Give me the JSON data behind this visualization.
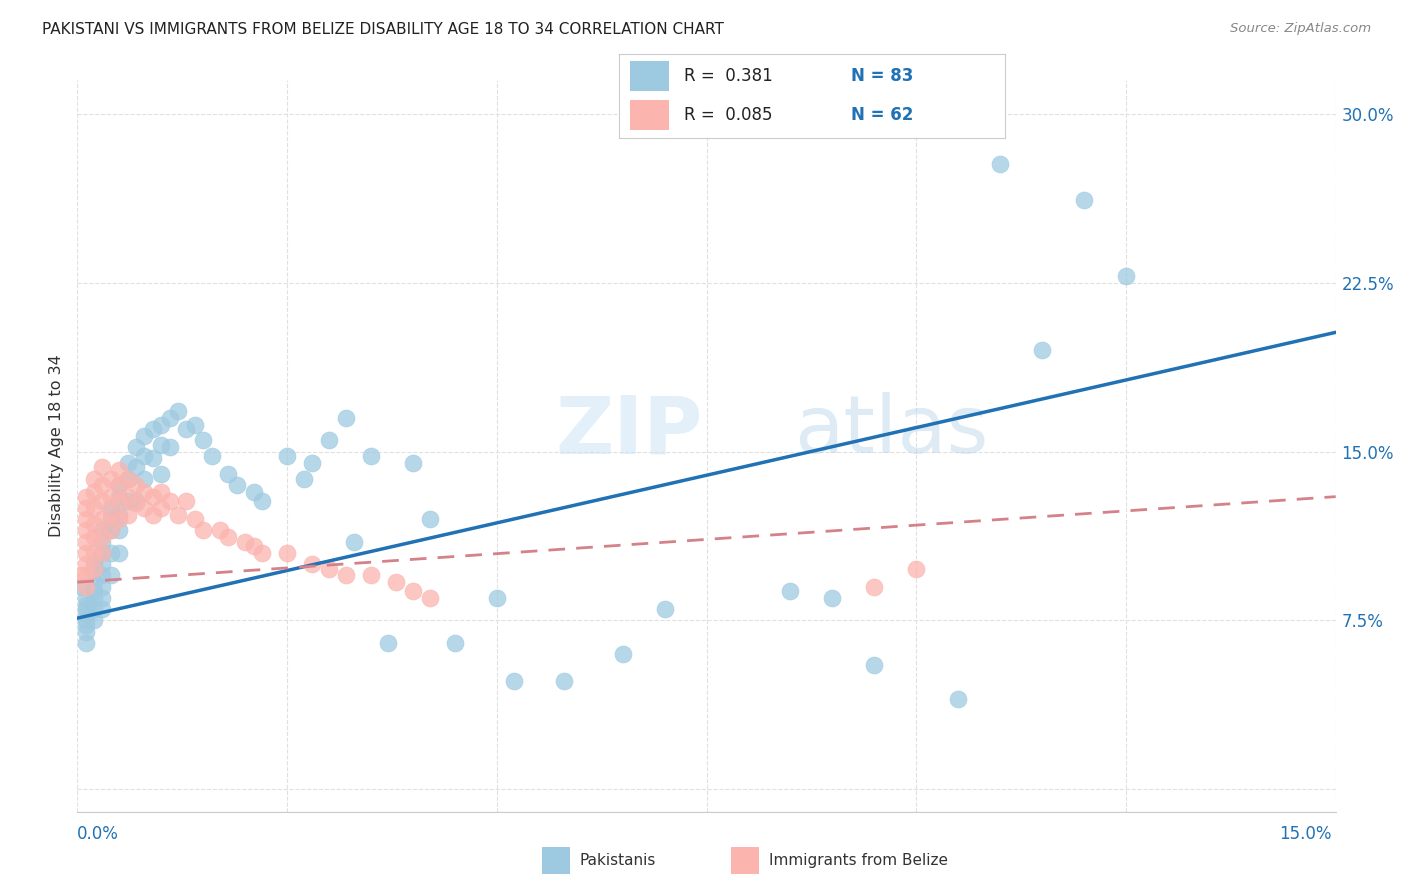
{
  "title": "PAKISTANI VS IMMIGRANTS FROM BELIZE DISABILITY AGE 18 TO 34 CORRELATION CHART",
  "source": "Source: ZipAtlas.com",
  "ylabel": "Disability Age 18 to 34",
  "legend_pakistanis": "Pakistanis",
  "legend_belize": "Immigrants from Belize",
  "R_pakistanis": 0.381,
  "N_pakistanis": 83,
  "R_belize": 0.085,
  "N_belize": 62,
  "color_pakistanis": "#9ecae1",
  "color_belize": "#fbb4ae",
  "color_pakistanis_line": "#2171b5",
  "color_belize_line": "#d4818a",
  "watermark_zip": "ZIP",
  "watermark_atlas": "atlas",
  "xmin": 0.0,
  "xmax": 0.15,
  "ymin": -0.01,
  "ymax": 0.315,
  "pak_line_x0": 0.0,
  "pak_line_y0": 0.076,
  "pak_line_x1": 0.15,
  "pak_line_y1": 0.203,
  "bel_line_x0": 0.0,
  "bel_line_y0": 0.092,
  "bel_line_x1": 0.15,
  "bel_line_y1": 0.13,
  "yticks": [
    0.0,
    0.075,
    0.15,
    0.225,
    0.3
  ],
  "ytick_labels": [
    "",
    "7.5%",
    "15.0%",
    "22.5%",
    "30.0%"
  ],
  "xticks": [
    0.0,
    0.025,
    0.05,
    0.075,
    0.1,
    0.125,
    0.15
  ],
  "grid_color": "#e0e0e0",
  "pak_scatter_x": [
    0.0005,
    0.001,
    0.001,
    0.001,
    0.001,
    0.001,
    0.001,
    0.001,
    0.001,
    0.002,
    0.002,
    0.002,
    0.002,
    0.002,
    0.002,
    0.002,
    0.003,
    0.003,
    0.003,
    0.003,
    0.003,
    0.003,
    0.003,
    0.003,
    0.004,
    0.004,
    0.004,
    0.004,
    0.004,
    0.005,
    0.005,
    0.005,
    0.005,
    0.005,
    0.006,
    0.006,
    0.006,
    0.007,
    0.007,
    0.007,
    0.008,
    0.008,
    0.008,
    0.009,
    0.009,
    0.01,
    0.01,
    0.01,
    0.011,
    0.011,
    0.012,
    0.013,
    0.014,
    0.015,
    0.016,
    0.018,
    0.019,
    0.021,
    0.022,
    0.025,
    0.027,
    0.028,
    0.03,
    0.032,
    0.033,
    0.035,
    0.037,
    0.04,
    0.042,
    0.045,
    0.05,
    0.052,
    0.058,
    0.065,
    0.07,
    0.085,
    0.09,
    0.095,
    0.105,
    0.11,
    0.115,
    0.12,
    0.125
  ],
  "pak_scatter_y": [
    0.09,
    0.085,
    0.082,
    0.08,
    0.078,
    0.075,
    0.073,
    0.07,
    0.065,
    0.1,
    0.097,
    0.092,
    0.088,
    0.085,
    0.08,
    0.075,
    0.115,
    0.11,
    0.105,
    0.1,
    0.095,
    0.09,
    0.085,
    0.08,
    0.125,
    0.12,
    0.115,
    0.105,
    0.095,
    0.135,
    0.13,
    0.122,
    0.115,
    0.105,
    0.145,
    0.138,
    0.128,
    0.152,
    0.143,
    0.128,
    0.157,
    0.148,
    0.138,
    0.16,
    0.147,
    0.162,
    0.153,
    0.14,
    0.165,
    0.152,
    0.168,
    0.16,
    0.162,
    0.155,
    0.148,
    0.14,
    0.135,
    0.132,
    0.128,
    0.148,
    0.138,
    0.145,
    0.155,
    0.165,
    0.11,
    0.148,
    0.065,
    0.145,
    0.12,
    0.065,
    0.085,
    0.048,
    0.048,
    0.06,
    0.08,
    0.088,
    0.085,
    0.055,
    0.04,
    0.278,
    0.195,
    0.262,
    0.228
  ],
  "bel_scatter_x": [
    0.0005,
    0.001,
    0.001,
    0.001,
    0.001,
    0.001,
    0.001,
    0.001,
    0.001,
    0.001,
    0.002,
    0.002,
    0.002,
    0.002,
    0.002,
    0.002,
    0.002,
    0.003,
    0.003,
    0.003,
    0.003,
    0.003,
    0.003,
    0.004,
    0.004,
    0.004,
    0.004,
    0.005,
    0.005,
    0.005,
    0.005,
    0.006,
    0.006,
    0.006,
    0.007,
    0.007,
    0.008,
    0.008,
    0.009,
    0.009,
    0.01,
    0.01,
    0.011,
    0.012,
    0.013,
    0.014,
    0.015,
    0.017,
    0.018,
    0.02,
    0.021,
    0.022,
    0.025,
    0.028,
    0.03,
    0.032,
    0.035,
    0.038,
    0.04,
    0.042,
    0.095,
    0.1
  ],
  "bel_scatter_y": [
    0.095,
    0.13,
    0.125,
    0.12,
    0.115,
    0.11,
    0.105,
    0.1,
    0.095,
    0.09,
    0.138,
    0.132,
    0.125,
    0.118,
    0.112,
    0.105,
    0.098,
    0.143,
    0.135,
    0.128,
    0.12,
    0.112,
    0.105,
    0.138,
    0.13,
    0.122,
    0.115,
    0.142,
    0.135,
    0.128,
    0.12,
    0.138,
    0.13,
    0.122,
    0.135,
    0.127,
    0.132,
    0.125,
    0.13,
    0.122,
    0.132,
    0.125,
    0.128,
    0.122,
    0.128,
    0.12,
    0.115,
    0.115,
    0.112,
    0.11,
    0.108,
    0.105,
    0.105,
    0.1,
    0.098,
    0.095,
    0.095,
    0.092,
    0.088,
    0.085,
    0.09,
    0.098
  ]
}
